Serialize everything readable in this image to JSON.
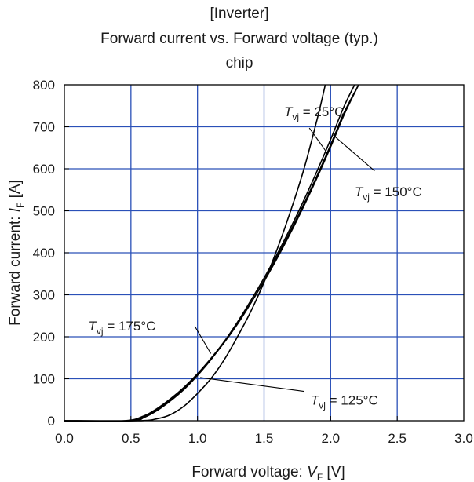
{
  "chart_data": {
    "type": "line",
    "title_lines": [
      "[Inverter]",
      "Forward current vs. Forward voltage (typ.)",
      "chip"
    ],
    "xlabel": {
      "prefix": "Forward voltage: ",
      "symbol": "V",
      "subscript": "F",
      "unit": " [V]"
    },
    "ylabel": {
      "prefix": "Forward current: ",
      "symbol": "I",
      "subscript": "F",
      "unit": " [A]"
    },
    "xlim": [
      0,
      3.0
    ],
    "ylim": [
      0,
      800
    ],
    "x_ticks": [
      "0.0",
      "0.5",
      "1.0",
      "1.5",
      "2.0",
      "2.5",
      "3.0"
    ],
    "y_ticks": [
      "0",
      "100",
      "200",
      "300",
      "400",
      "500",
      "600",
      "700",
      "800"
    ],
    "grid": true,
    "grid_color": "#2a50b8",
    "line_color": "#000000",
    "series": [
      {
        "name": "Tvj = 25°C",
        "x": [
          0.0,
          0.55,
          0.7,
          0.8,
          0.9,
          1.0,
          1.1,
          1.2,
          1.3,
          1.4,
          1.5,
          1.6,
          1.7,
          1.8,
          1.9,
          1.96
        ],
        "y": [
          0,
          0,
          5,
          15,
          35,
          65,
          100,
          145,
          200,
          260,
          330,
          410,
          500,
          600,
          720,
          800
        ]
      },
      {
        "name": "Tvj = 125°C",
        "x": [
          0.0,
          0.5,
          0.6,
          0.7,
          0.8,
          0.9,
          1.0,
          1.1,
          1.2,
          1.3,
          1.4,
          1.5,
          1.6,
          1.7,
          1.8,
          1.9,
          2.0,
          2.1,
          2.18
        ],
        "y": [
          0,
          0,
          8,
          25,
          48,
          75,
          108,
          145,
          188,
          235,
          286,
          340,
          398,
          460,
          526,
          596,
          670,
          748,
          800
        ]
      },
      {
        "name": "Tvj = 150°C",
        "x": [
          0.0,
          0.48,
          0.6,
          0.7,
          0.8,
          0.9,
          1.0,
          1.1,
          1.2,
          1.3,
          1.4,
          1.5,
          1.6,
          1.7,
          1.8,
          1.9,
          2.0,
          2.1,
          2.21
        ],
        "y": [
          0,
          0,
          10,
          28,
          50,
          78,
          110,
          146,
          186,
          230,
          280,
          334,
          392,
          453,
          517,
          585,
          657,
          733,
          800
        ]
      },
      {
        "name": "Tvj = 175°C",
        "x": [
          0.0,
          0.45,
          0.6,
          0.7,
          0.8,
          0.9,
          1.0,
          1.1,
          1.2,
          1.3,
          1.4,
          1.5,
          1.6,
          1.7,
          1.8,
          1.9,
          2.0,
          2.1,
          2.21
        ],
        "y": [
          0,
          0,
          12,
          30,
          53,
          80,
          112,
          148,
          188,
          232,
          280,
          332,
          388,
          448,
          512,
          580,
          652,
          728,
          800
        ]
      }
    ],
    "annotations": [
      {
        "symbol": "T",
        "subscript": "vj",
        "text": " = 25°C",
        "label_at": [
          1.65,
          725
        ],
        "anchor": "start",
        "pointer_from": [
          1.84,
          697
        ],
        "pointer_to": [
          1.98,
          635
        ]
      },
      {
        "symbol": "T",
        "subscript": "vj",
        "text": " = 150°C",
        "label_at": [
          2.18,
          535
        ],
        "anchor": "start",
        "pointer_from": [
          2.33,
          595
        ],
        "pointer_to": [
          2.02,
          680
        ]
      },
      {
        "symbol": "T",
        "subscript": "vj",
        "text": " = 175°C",
        "label_at": [
          0.18,
          215
        ],
        "anchor": "start",
        "pointer_from": [
          0.98,
          225
        ],
        "pointer_to": [
          1.1,
          160
        ]
      },
      {
        "symbol": "T",
        "subscript": "vj",
        "text": " = 125°C",
        "label_at": [
          1.85,
          38
        ],
        "anchor": "start",
        "pointer_from": [
          1.8,
          70
        ],
        "pointer_to": [
          1.02,
          103
        ]
      }
    ]
  }
}
